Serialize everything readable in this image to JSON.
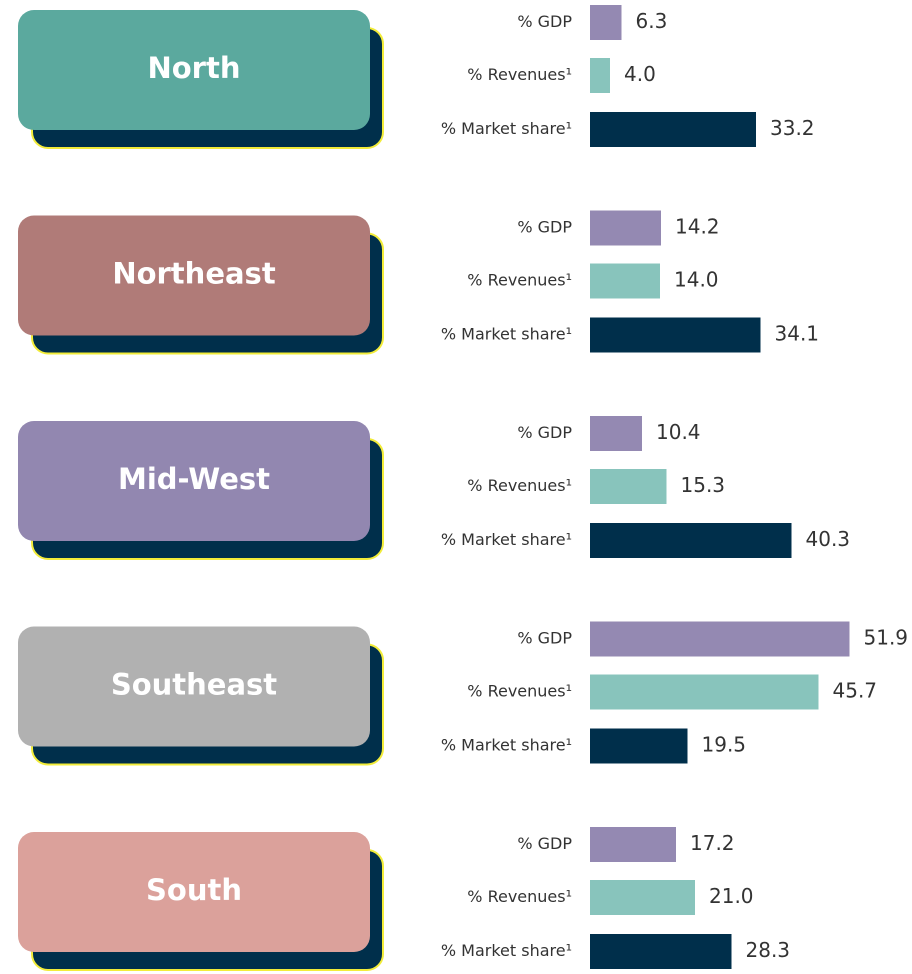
{
  "chart_data": {
    "type": "bar",
    "categories": [
      "North",
      "Northeast",
      "Mid-West",
      "Southeast",
      "South"
    ],
    "colors": [
      "#5ba99e",
      "#b07b78",
      "#9287b0",
      "#b1b1b1",
      "#dba19b"
    ],
    "series": [
      {
        "name": "% GDP",
        "color": "#9489b2",
        "values": [
          6.3,
          14.2,
          10.4,
          51.9,
          17.2
        ],
        "value_labels": [
          "6.3",
          "14.2",
          "10.4",
          "51.9",
          "17.2"
        ]
      },
      {
        "name": "% Revenues¹",
        "color": "#88c4bc",
        "values": [
          4.0,
          14.0,
          15.3,
          45.7,
          21.0
        ],
        "value_labels": [
          "4.0",
          "14.0",
          "15.3",
          "45.7",
          "21.0"
        ]
      },
      {
        "name": "% Market share¹",
        "color": "#002f4b",
        "values": [
          33.2,
          34.1,
          40.3,
          19.5,
          28.3
        ],
        "value_labels": [
          "33.2",
          "34.1",
          "40.3",
          "19.5",
          "28.3"
        ]
      }
    ]
  }
}
